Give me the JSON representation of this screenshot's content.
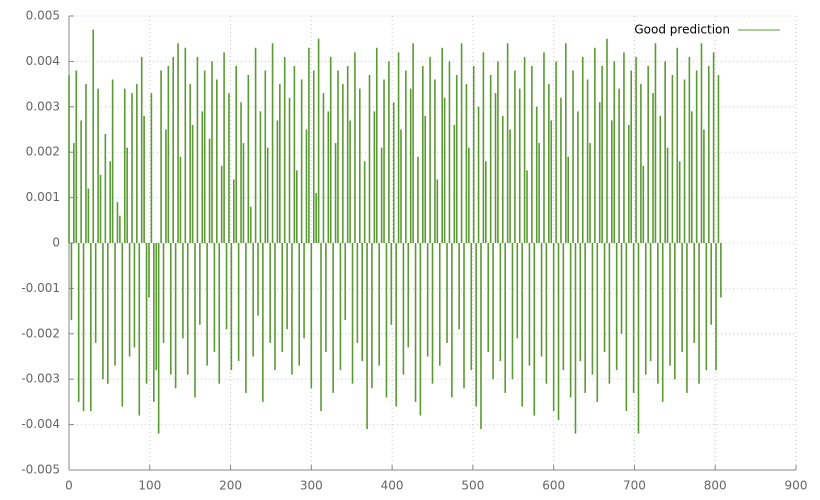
{
  "chart_data": {
    "type": "impulse",
    "color": "#5a9a32",
    "grid": true,
    "legend": "top-right",
    "series": [
      {
        "name": "Good prediction",
        "color": "#5a9a32",
        "x": [
          0,
          3,
          6,
          9,
          12,
          15,
          18,
          21,
          24,
          27,
          30,
          33,
          36,
          39,
          42,
          45,
          48,
          51,
          54,
          57,
          60,
          63,
          66,
          69,
          72,
          75,
          78,
          81,
          84,
          87,
          90,
          93,
          96,
          99,
          102,
          105,
          108,
          111,
          114,
          117,
          120,
          123,
          126,
          129,
          132,
          135,
          138,
          141,
          144,
          147,
          150,
          153,
          156,
          159,
          162,
          165,
          168,
          171,
          174,
          177,
          180,
          183,
          186,
          189,
          192,
          195,
          198,
          201,
          204,
          207,
          210,
          213,
          216,
          219,
          222,
          225,
          228,
          231,
          234,
          237,
          240,
          243,
          246,
          249,
          252,
          255,
          258,
          261,
          264,
          267,
          270,
          273,
          276,
          279,
          282,
          285,
          288,
          291,
          294,
          297,
          300,
          303,
          306,
          309,
          312,
          315,
          318,
          321,
          324,
          327,
          330,
          333,
          336,
          339,
          342,
          345,
          348,
          351,
          354,
          357,
          360,
          363,
          366,
          369,
          372,
          375,
          378,
          381,
          384,
          387,
          390,
          393,
          396,
          399,
          402,
          405,
          408,
          411,
          414,
          417,
          420,
          423,
          426,
          429,
          432,
          435,
          438,
          441,
          444,
          447,
          450,
          453,
          456,
          459,
          462,
          465,
          468,
          471,
          474,
          477,
          480,
          483,
          486,
          489,
          492,
          495,
          498,
          501,
          504,
          507,
          510,
          513,
          516,
          519,
          522,
          525,
          528,
          531,
          534,
          537,
          540,
          543,
          546,
          549,
          552,
          555,
          558,
          561,
          564,
          567,
          570,
          573,
          576,
          579,
          582,
          585,
          588,
          591,
          594,
          597,
          600,
          603,
          606,
          609,
          612,
          615,
          618,
          621,
          624,
          627,
          630,
          633,
          636,
          639,
          642,
          645,
          648,
          651,
          654,
          657,
          660,
          663,
          666,
          669,
          672,
          675,
          678,
          681,
          684,
          687,
          690,
          693,
          696,
          699,
          702,
          705,
          708,
          711,
          714,
          717,
          720,
          723,
          726,
          729,
          732,
          735,
          738,
          741,
          744,
          747,
          750,
          753,
          756,
          759,
          762,
          765,
          768,
          771,
          774,
          777,
          780,
          783,
          786,
          789,
          792,
          795,
          798,
          801,
          804,
          807
        ],
        "values": [
          0.0037,
          -0.0017,
          0.0022,
          0.0038,
          -0.0035,
          0.0027,
          -0.0037,
          0.0035,
          0.0012,
          -0.0037,
          0.0047,
          -0.0022,
          0.0034,
          0.0015,
          -0.003,
          0.0024,
          -0.0031,
          0.0018,
          0.0036,
          -0.0027,
          0.0009,
          0.0006,
          -0.0036,
          0.0034,
          0.0021,
          -0.0025,
          0.0033,
          -0.0023,
          0.0035,
          -0.0038,
          0.0041,
          0.0028,
          -0.0031,
          -0.0012,
          0.0033,
          -0.0035,
          -0.0028,
          -0.0042,
          0.0038,
          -0.0022,
          0.0025,
          0.0039,
          -0.0029,
          0.0041,
          -0.0032,
          0.0044,
          0.0019,
          -0.0021,
          0.0043,
          -0.0029,
          0.0035,
          0.0026,
          -0.0034,
          0.0041,
          -0.0018,
          0.0029,
          0.0038,
          -0.0027,
          0.0023,
          0.004,
          -0.0024,
          0.0036,
          -0.0031,
          0.0017,
          0.0042,
          -0.0019,
          0.0033,
          -0.0028,
          0.0014,
          0.0039,
          -0.0026,
          0.0031,
          0.0022,
          -0.0033,
          0.0037,
          0.0008,
          -0.0025,
          0.0043,
          -0.0016,
          0.0029,
          -0.0035,
          0.0038,
          0.0021,
          -0.0022,
          0.0044,
          -0.0028,
          0.0027,
          0.0035,
          -0.0024,
          0.0041,
          -0.0019,
          0.0032,
          -0.0029,
          0.0039,
          0.0016,
          -0.0027,
          0.0036,
          -0.0021,
          0.0025,
          0.0043,
          -0.0032,
          0.0038,
          0.0011,
          0.0045,
          -0.0037,
          0.0033,
          -0.0024,
          0.0029,
          0.0041,
          -0.0033,
          0.0022,
          0.0038,
          -0.0028,
          0.0035,
          -0.0017,
          0.0039,
          0.0027,
          -0.0031,
          0.0042,
          -0.0022,
          0.0034,
          -0.0026,
          0.0018,
          -0.0041,
          0.0037,
          -0.0032,
          0.0029,
          0.0043,
          -0.0027,
          0.0021,
          0.0036,
          -0.0034,
          0.004,
          -0.0018,
          0.0031,
          -0.0036,
          0.0042,
          0.0025,
          -0.0029,
          0.0038,
          -0.0023,
          0.0034,
          0.0044,
          -0.0035,
          0.0019,
          -0.0038,
          0.0039,
          0.0028,
          -0.0025,
          0.0041,
          -0.0031,
          0.0036,
          0.0014,
          -0.0027,
          0.0043,
          0.0032,
          -0.0022,
          0.004,
          -0.0034,
          0.0026,
          0.0037,
          -0.0019,
          0.0044,
          -0.0032,
          0.0035,
          0.0021,
          -0.0028,
          0.0039,
          -0.0036,
          0.003,
          -0.0041,
          0.0042,
          0.0018,
          -0.0024,
          0.0037,
          -0.003,
          0.0033,
          0.004,
          -0.0026,
          0.0028,
          -0.0033,
          0.0044,
          0.0025,
          -0.003,
          0.0038,
          -0.0021,
          0.0034,
          -0.0036,
          0.0041,
          0.0016,
          -0.0027,
          0.0039,
          -0.0038,
          0.003,
          0.0022,
          -0.0025,
          0.0042,
          -0.0031,
          0.0035,
          0.0027,
          -0.0037,
          0.004,
          -0.0039,
          0.0032,
          -0.0028,
          0.0044,
          0.0019,
          -0.0034,
          0.0038,
          -0.0042,
          0.0029,
          -0.0026,
          0.0041,
          -0.0033,
          0.0036,
          0.0022,
          -0.0029,
          0.0043,
          -0.0035,
          0.0031,
          0.0039,
          -0.0024,
          0.0045,
          -0.0031,
          0.0027,
          0.004,
          -0.0028,
          0.0034,
          -0.002,
          0.0042,
          -0.0037,
          0.0026,
          0.0038,
          -0.0033,
          0.0041,
          -0.0042,
          0.0035,
          0.0017,
          -0.0029,
          0.0039,
          -0.0026,
          0.0033,
          0.0044,
          -0.0031,
          0.0028,
          -0.0035,
          0.004,
          0.0021,
          -0.0027,
          0.0037,
          -0.003,
          0.0043,
          0.0018,
          -0.0024,
          0.0036,
          -0.0033,
          0.0041,
          0.0029,
          -0.0022,
          0.0038,
          -0.0031,
          0.0044,
          0.0025,
          -0.0028,
          0.0039,
          -0.0018,
          0.0042,
          -0.0028,
          0.0037,
          -0.0012
        ]
      }
    ],
    "xlim": [
      0,
      900
    ],
    "xticks": [
      0,
      100,
      200,
      300,
      400,
      500,
      600,
      700,
      800,
      900
    ],
    "ylim": [
      -0.005,
      0.005
    ],
    "yticks": [
      -0.005,
      -0.004,
      -0.003,
      -0.002,
      -0.001,
      0,
      0.001,
      0.002,
      0.003,
      0.004,
      0.005
    ]
  }
}
